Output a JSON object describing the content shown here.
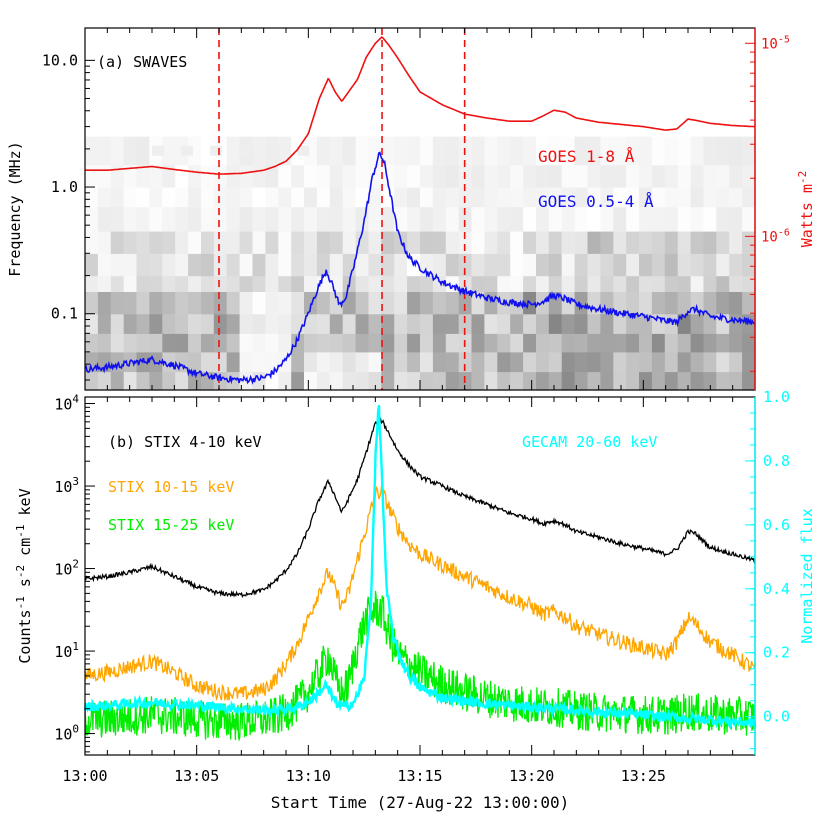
{
  "figure": {
    "shared_xlabel": "Start Time (27-Aug-22 13:00:00)",
    "x_tick_labels": [
      "13:00",
      "13:05",
      "13:10",
      "13:15",
      "13:20",
      "13:25"
    ]
  },
  "chart_data": [
    {
      "type": "line",
      "panel_label": "(a) SWAVES",
      "x_unit": "minutes after 13:00",
      "xlim": [
        0,
        30
      ],
      "ylabel": "Frequency (MHz)",
      "y_scale": "log",
      "ylim": [
        0.025,
        18
      ],
      "y_tick_labels": [
        "0.1",
        "1.0",
        "10.0"
      ],
      "y2label": "Watts m",
      "y2_scale": "log",
      "y2_tick_labels": [
        "10",
        "10"
      ],
      "y2_tick_exponents": [
        "-6",
        "-5"
      ],
      "background": "SWAVES radio dynamic spectrum (grayscale)",
      "vertical_markers": [
        6.0,
        13.3,
        17.0
      ],
      "series": [
        {
          "name": "GOES 1-8 Å",
          "color": "#ee1111",
          "axis": "right",
          "x": [
            0,
            1,
            2,
            3,
            4,
            5,
            6,
            7,
            8,
            8.5,
            9,
            9.5,
            10,
            10.5,
            10.9,
            11.2,
            11.5,
            11.8,
            12.2,
            12.6,
            13.0,
            13.3,
            13.6,
            14.0,
            14.5,
            15.0,
            16,
            17,
            18,
            19,
            20,
            20.5,
            21,
            21.5,
            22,
            23,
            24,
            25,
            26,
            26.5,
            27,
            27.3,
            28,
            29,
            30
          ],
          "values": [
            2.2e-06,
            2.2e-06,
            2.25e-06,
            2.3e-06,
            2.22e-06,
            2.15e-06,
            2.1e-06,
            2.12e-06,
            2.2e-06,
            2.3e-06,
            2.45e-06,
            2.8e-06,
            3.4e-06,
            5.2e-06,
            6.6e-06,
            5.6e-06,
            5e-06,
            5.6e-06,
            6.5e-06,
            8.5e-06,
            1e-05,
            1.08e-05,
            9.8e-06,
            8.4e-06,
            6.8e-06,
            5.6e-06,
            4.8e-06,
            4.3e-06,
            4.1e-06,
            3.95e-06,
            3.95e-06,
            4.2e-06,
            4.5e-06,
            4.4e-06,
            4.1e-06,
            3.9e-06,
            3.8e-06,
            3.7e-06,
            3.55e-06,
            3.6e-06,
            4.05e-06,
            4e-06,
            3.85e-06,
            3.75e-06,
            3.7e-06
          ]
        },
        {
          "name": "GOES 0.5-4 Å",
          "color": "#1111ee",
          "axis": "right",
          "x": [
            0,
            1,
            2,
            3,
            4,
            5,
            6,
            7,
            8,
            8.5,
            9,
            9.5,
            10,
            10.4,
            10.8,
            11.1,
            11.4,
            11.7,
            12.1,
            12.5,
            12.9,
            13.2,
            13.4,
            13.7,
            14.0,
            14.5,
            15.0,
            15.5,
            16,
            17,
            18,
            19,
            20,
            20.5,
            21,
            21.5,
            22,
            23,
            24,
            25,
            26,
            26.5,
            27,
            27.3,
            28,
            29,
            30
          ],
          "values": [
            2.05e-07,
            2.1e-07,
            2.2e-07,
            2.3e-07,
            2.15e-07,
            1.95e-07,
            1.85e-07,
            1.8e-07,
            1.85e-07,
            2e-07,
            2.3e-07,
            2.9e-07,
            4e-07,
            5.3e-07,
            6.7e-07,
            5.5e-07,
            4.4e-07,
            4.9e-07,
            7.5e-07,
            1.2e-06,
            2.1e-06,
            2.7e-06,
            2.4e-06,
            1.6e-06,
            1.05e-06,
            7.8e-07,
            6.9e-07,
            6.3e-07,
            5.8e-07,
            5.2e-07,
            4.8e-07,
            4.55e-07,
            4.45e-07,
            4.6e-07,
            4.95e-07,
            4.75e-07,
            4.45e-07,
            4.2e-07,
            4e-07,
            3.85e-07,
            3.65e-07,
            3.6e-07,
            4.1e-07,
            4.2e-07,
            3.85e-07,
            3.7e-07,
            3.6e-07
          ]
        }
      ]
    },
    {
      "type": "line",
      "panel_label": "(b) STIX 4-10 keV",
      "x_unit": "minutes after 13:00",
      "xlim": [
        0,
        30
      ],
      "ylabel": "Counts s cm keV",
      "ylabel_exponents": [
        "-1",
        "-2",
        "-1"
      ],
      "y_scale": "log",
      "ylim": [
        0.55,
        12000
      ],
      "y_tick_labels": [
        "10",
        "10",
        "10",
        "10",
        "10"
      ],
      "y_tick_exponents": [
        "0",
        "1",
        "2",
        "3",
        "4"
      ],
      "y2label": "Normalized flux",
      "y2lim": [
        -0.12,
        1.0
      ],
      "y2_tick_labels": [
        "0.0",
        "0.2",
        "0.4",
        "0.6",
        "0.8",
        "1.0"
      ],
      "series": [
        {
          "name": "STIX 4-10 keV",
          "color": "#000000",
          "axis": "left",
          "x": [
            0,
            1,
            2,
            3,
            4,
            5,
            6,
            7,
            8,
            8.5,
            9,
            9.5,
            10,
            10.5,
            10.9,
            11.2,
            11.5,
            11.8,
            12.2,
            12.6,
            13.0,
            13.3,
            13.6,
            14.0,
            14.5,
            15.0,
            16,
            17,
            18,
            19,
            20,
            20.5,
            21,
            21.5,
            22,
            23,
            24,
            25,
            26,
            26.5,
            27,
            27.3,
            28,
            29,
            30
          ],
          "values": [
            75,
            80,
            90,
            105,
            80,
            60,
            50,
            48,
            55,
            70,
            95,
            150,
            300,
            700,
            1150,
            750,
            480,
            700,
            1200,
            2600,
            5800,
            6200,
            4400,
            2700,
            1800,
            1300,
            1000,
            750,
            600,
            470,
            400,
            350,
            380,
            340,
            280,
            240,
            200,
            175,
            150,
            170,
            280,
            270,
            180,
            150,
            125
          ]
        },
        {
          "name": "STIX 10-15 keV",
          "color": "#ffa500",
          "axis": "left",
          "x": [
            0,
            1,
            2,
            3,
            4,
            5,
            6,
            7,
            8,
            8.5,
            9,
            9.5,
            10,
            10.5,
            10.9,
            11.2,
            11.5,
            11.8,
            12.2,
            12.6,
            13.0,
            13.3,
            13.6,
            14.0,
            14.5,
            15.0,
            16,
            17,
            18,
            19,
            20,
            20.5,
            21,
            21.5,
            22,
            23,
            24,
            25,
            26,
            26.5,
            27,
            27.3,
            28,
            29,
            30
          ],
          "values": [
            5,
            5.5,
            6.5,
            7.5,
            5.5,
            3.8,
            3.2,
            3.0,
            3.4,
            4.5,
            7,
            12,
            25,
            55,
            90,
            55,
            35,
            50,
            130,
            320,
            800,
            850,
            560,
            320,
            200,
            150,
            110,
            80,
            60,
            45,
            35,
            28,
            30,
            26,
            20,
            16,
            13,
            11,
            9,
            13,
            25,
            22,
            13,
            9,
            6
          ]
        },
        {
          "name": "STIX 15-25 keV",
          "color": "#00ee00",
          "axis": "left",
          "x": [
            0,
            1,
            2,
            3,
            4,
            5,
            6,
            7,
            8,
            8.5,
            9,
            9.5,
            10,
            10.5,
            10.9,
            11.2,
            11.5,
            11.8,
            12.2,
            12.6,
            13.0,
            13.3,
            13.6,
            14.0,
            14.5,
            15.0,
            16,
            17,
            18,
            19,
            20,
            20.5,
            21,
            21.5,
            22,
            23,
            24,
            25,
            26,
            26.5,
            27,
            27.3,
            28,
            29,
            30
          ],
          "values": [
            1.5,
            1.5,
            1.6,
            1.7,
            1.6,
            1.5,
            1.4,
            1.4,
            1.5,
            1.6,
            1.8,
            2.3,
            3.2,
            5.5,
            9,
            4.5,
            3.0,
            4.0,
            12,
            25,
            33,
            30,
            16,
            9,
            7,
            5.5,
            4.0,
            3.2,
            2.7,
            2.4,
            2.2,
            2.1,
            2.1,
            2.0,
            1.9,
            1.8,
            1.75,
            1.7,
            1.65,
            1.7,
            1.9,
            1.8,
            1.7,
            1.65,
            1.6
          ]
        },
        {
          "name": "GECAM 20-60 keV",
          "color": "#00ffff",
          "axis": "right",
          "x": [
            0,
            1,
            2,
            3,
            4,
            5,
            6,
            7,
            8,
            8.5,
            9,
            9.5,
            10,
            10.4,
            10.8,
            11.0,
            11.3,
            11.7,
            12.1,
            12.5,
            12.8,
            13.0,
            13.15,
            13.3,
            13.5,
            13.8,
            14.2,
            14.6,
            15.0,
            16,
            17,
            18,
            19,
            20,
            21,
            22,
            23,
            24,
            25,
            26,
            27,
            28,
            29,
            30
          ],
          "values": [
            0.03,
            0.035,
            0.04,
            0.045,
            0.04,
            0.035,
            0.03,
            0.025,
            0.02,
            0.02,
            0.025,
            0.03,
            0.045,
            0.07,
            0.1,
            0.07,
            0.04,
            0.03,
            0.05,
            0.12,
            0.35,
            0.8,
            0.98,
            0.75,
            0.4,
            0.25,
            0.17,
            0.12,
            0.09,
            0.06,
            0.05,
            0.04,
            0.035,
            0.03,
            0.025,
            0.02,
            0.015,
            0.01,
            0.005,
            0.0,
            -0.005,
            -0.01,
            -0.015,
            -0.02
          ]
        }
      ]
    }
  ]
}
